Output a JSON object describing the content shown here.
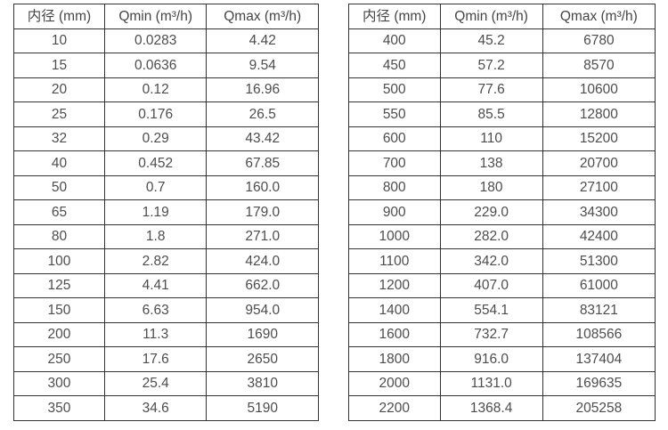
{
  "tables": [
    {
      "name": "small-diameter-flow-ranges",
      "headers": [
        "内径 (mm)",
        "Qmin (m³/h)",
        "Qmax (m³/h)"
      ],
      "rows": [
        [
          "10",
          "0.0283",
          "4.42"
        ],
        [
          "15",
          "0.0636",
          "9.54"
        ],
        [
          "20",
          "0.12",
          "16.96"
        ],
        [
          "25",
          "0.176",
          "26.5"
        ],
        [
          "32",
          "0.29",
          "43.42"
        ],
        [
          "40",
          "0.452",
          "67.85"
        ],
        [
          "50",
          "0.7",
          "160.0"
        ],
        [
          "65",
          "1.19",
          "179.0"
        ],
        [
          "80",
          "1.8",
          "271.0"
        ],
        [
          "100",
          "2.82",
          "424.0"
        ],
        [
          "125",
          "4.41",
          "662.0"
        ],
        [
          "150",
          "6.63",
          "954.0"
        ],
        [
          "200",
          "11.3",
          "1690"
        ],
        [
          "250",
          "17.6",
          "2650"
        ],
        [
          "300",
          "25.4",
          "3810"
        ],
        [
          "350",
          "34.6",
          "5190"
        ]
      ]
    },
    {
      "name": "large-diameter-flow-ranges",
      "headers": [
        "内径 (mm)",
        "Qmin (m³/h)",
        "Qmax (m³/h)"
      ],
      "rows": [
        [
          "400",
          "45.2",
          "6780"
        ],
        [
          "450",
          "57.2",
          "8570"
        ],
        [
          "500",
          "77.6",
          "10600"
        ],
        [
          "550",
          "85.5",
          "12800"
        ],
        [
          "600",
          "110",
          "15200"
        ],
        [
          "700",
          "138",
          "20700"
        ],
        [
          "800",
          "180",
          "27100"
        ],
        [
          "900",
          "229.0",
          "34300"
        ],
        [
          "1000",
          "282.0",
          "42400"
        ],
        [
          "1100",
          "342.0",
          "51300"
        ],
        [
          "1200",
          "407.0",
          "61000"
        ],
        [
          "1400",
          "554.1",
          "83121"
        ],
        [
          "1600",
          "732.7",
          "108566"
        ],
        [
          "1800",
          "916.0",
          "137404"
        ],
        [
          "2000",
          "1131.0",
          "169635"
        ],
        [
          "2200",
          "1368.4",
          "205258"
        ]
      ]
    }
  ],
  "colors": {
    "border": "#333333",
    "text": "#4a4a4a",
    "background": "#ffffff"
  },
  "column_semantics": [
    "inner-diameter-mm",
    "qmin-m3h",
    "qmax-m3h"
  ]
}
